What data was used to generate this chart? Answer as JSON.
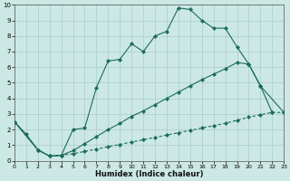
{
  "xlabel": "Humidex (Indice chaleur)",
  "background_color": "#cce8e4",
  "grid_color": "#aaccca",
  "line_color": "#1a6b5a",
  "xlim": [
    0,
    23
  ],
  "ylim": [
    0,
    10
  ],
  "xticks": [
    0,
    1,
    2,
    3,
    4,
    5,
    6,
    7,
    8,
    9,
    10,
    11,
    12,
    13,
    14,
    15,
    16,
    17,
    18,
    19,
    20,
    21,
    22,
    23
  ],
  "yticks": [
    0,
    1,
    2,
    3,
    4,
    5,
    6,
    7,
    8,
    9,
    10
  ],
  "line1_x": [
    0,
    1,
    2,
    3,
    4,
    5,
    6,
    7,
    8,
    9,
    10,
    11,
    12,
    13,
    14,
    15,
    16,
    17,
    18,
    19,
    20,
    21,
    22
  ],
  "line1_y": [
    2.5,
    1.7,
    0.7,
    0.3,
    0.35,
    2.0,
    2.1,
    4.7,
    6.4,
    6.5,
    7.5,
    7.0,
    8.0,
    8.3,
    9.8,
    9.7,
    9.0,
    8.5,
    8.5,
    7.3,
    6.2,
    4.8,
    3.1
  ],
  "line2_x": [
    0,
    2,
    3,
    4,
    5,
    6,
    7,
    8,
    9,
    10,
    11,
    12,
    13,
    14,
    15,
    16,
    17,
    18,
    19,
    20,
    21,
    23
  ],
  "line2_y": [
    2.5,
    0.7,
    0.3,
    0.35,
    0.65,
    1.1,
    1.55,
    2.0,
    2.4,
    2.85,
    3.2,
    3.6,
    4.0,
    4.4,
    4.8,
    5.2,
    5.55,
    5.9,
    6.3,
    6.2,
    4.8,
    3.1
  ],
  "line3_x": [
    0,
    2,
    3,
    4,
    5,
    6,
    7,
    8,
    9,
    10,
    11,
    12,
    13,
    14,
    15,
    16,
    17,
    18,
    19,
    20,
    21,
    22,
    23
  ],
  "line3_y": [
    2.5,
    0.7,
    0.3,
    0.35,
    0.45,
    0.6,
    0.75,
    0.9,
    1.05,
    1.2,
    1.35,
    1.5,
    1.65,
    1.8,
    1.95,
    2.1,
    2.25,
    2.4,
    2.6,
    2.8,
    2.95,
    3.1,
    3.1
  ]
}
